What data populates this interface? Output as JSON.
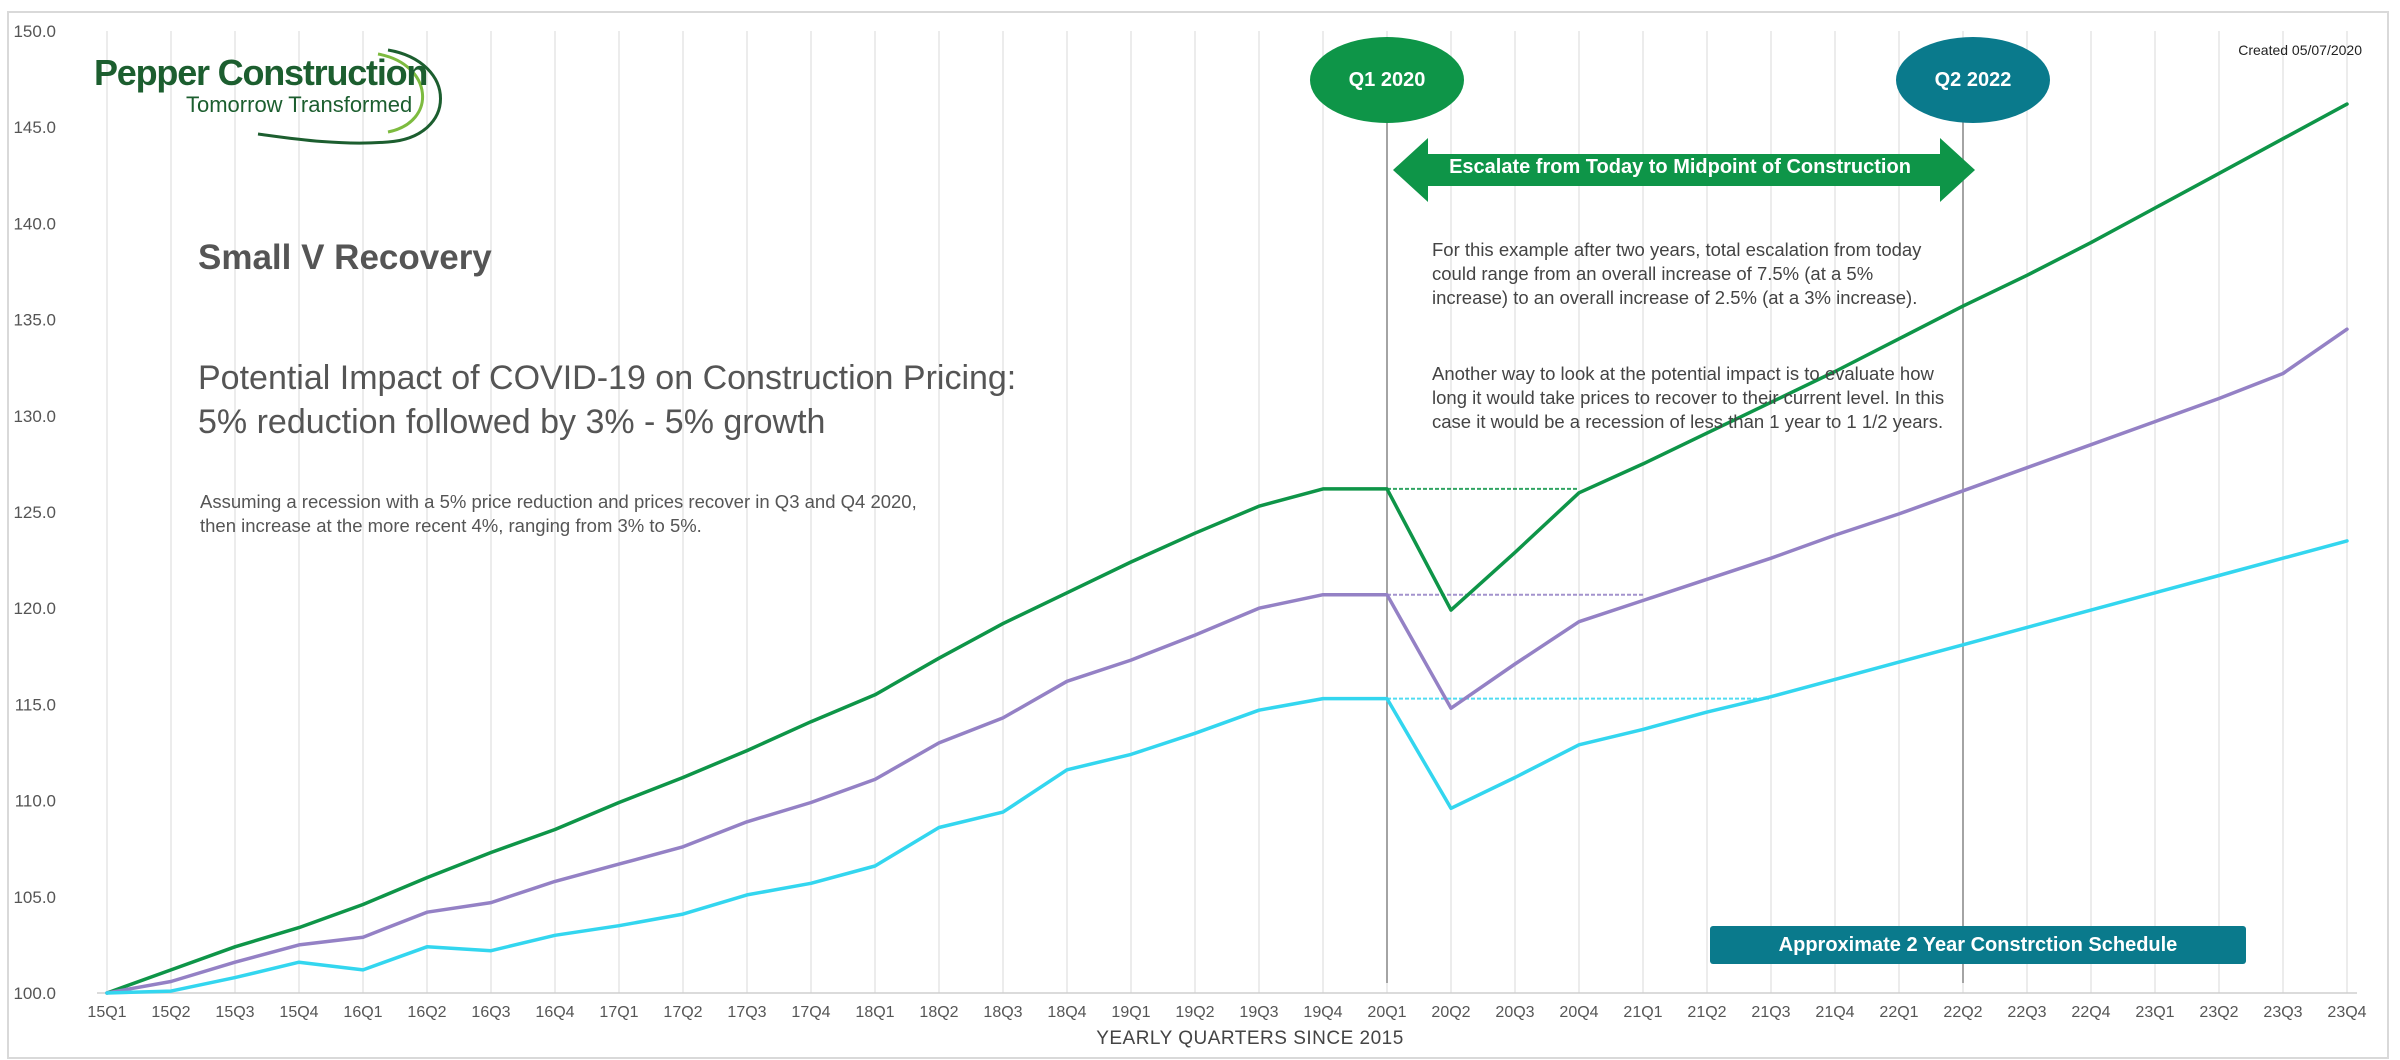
{
  "header": {
    "company": "Pepper Construction",
    "tagline": "Tomorrow Transformed",
    "created": "Created 05/07/2020"
  },
  "texts": {
    "title": "Small V Recovery",
    "headline_line1": "Potential Impact of COVID-19 on Construction Pricing:",
    "headline_line2": "5% reduction followed by 3% - 5% growth",
    "assumption_line1": "Assuming a recession with a 5% price reduction and prices recover in Q3 and Q4 2020,",
    "assumption_line2": "then increase at the more recent 4%, ranging from 3% to 5%.",
    "note1": "For this example after two years, total escalation from today could range from an overall increase of 7.5% (at a 5% increase) to an overall increase of 2.5% (at a 3% increase).",
    "note2": "Another way to look at the potential impact is to evaluate how long it would take prices to recover to their current level. In this case it would be a recession of less than 1 year to 1 1/2 years.",
    "badge_start": "Q1 2020",
    "badge_end": "Q2 2022",
    "escalate_arrow": "Escalate from Today to Midpoint of Construction",
    "schedule_box": "Approximate 2 Year Constrction Schedule"
  },
  "colors": {
    "green": "#0e9548",
    "purple": "#9481c5",
    "cyan": "#33d6ef",
    "teal": "#0a7a8c",
    "grid": "#e6e6e6",
    "axis_text": "#555555"
  },
  "chart_data": {
    "type": "line",
    "xlabel": "YEARLY QUARTERS SINCE 2015",
    "ylabel": "",
    "ylim": [
      100,
      150
    ],
    "yticks": [
      "100.0",
      "105.0",
      "110.0",
      "115.0",
      "120.0",
      "125.0",
      "130.0",
      "135.0",
      "140.0",
      "145.0",
      "150.0"
    ],
    "grid": "vertical",
    "categories": [
      "15Q1",
      "15Q2",
      "15Q3",
      "15Q4",
      "16Q1",
      "16Q2",
      "16Q3",
      "16Q4",
      "17Q1",
      "17Q2",
      "17Q3",
      "17Q4",
      "18Q1",
      "18Q2",
      "18Q3",
      "18Q4",
      "19Q1",
      "19Q2",
      "19Q3",
      "19Q4",
      "20Q1",
      "20Q2",
      "20Q3",
      "20Q4",
      "21Q1",
      "21Q2",
      "21Q3",
      "21Q4",
      "22Q1",
      "22Q2",
      "22Q3",
      "22Q4",
      "23Q1",
      "23Q2",
      "23Q3",
      "23Q4"
    ],
    "series": [
      {
        "color": "green",
        "values": [
          100.0,
          101.2,
          102.4,
          103.4,
          104.6,
          106.0,
          107.3,
          108.5,
          109.9,
          111.2,
          112.6,
          114.1,
          115.5,
          117.4,
          119.2,
          120.8,
          122.4,
          123.9,
          125.3,
          126.2,
          126.2,
          119.9,
          122.9,
          126.0,
          127.5,
          129.1,
          130.7,
          132.3,
          134.0,
          135.7,
          137.3,
          139.0,
          140.8,
          142.6,
          144.4,
          146.2
        ]
      },
      {
        "color": "purple",
        "values": [
          100.0,
          100.6,
          101.6,
          102.5,
          102.9,
          104.2,
          104.7,
          105.8,
          106.7,
          107.6,
          108.9,
          109.9,
          111.1,
          113.0,
          114.3,
          116.2,
          117.3,
          118.6,
          120.0,
          120.7,
          120.7,
          114.8,
          117.1,
          119.3,
          120.4,
          121.5,
          122.6,
          123.8,
          124.9,
          126.1,
          127.3,
          128.5,
          129.7,
          130.9,
          132.2,
          134.5
        ]
      },
      {
        "color": "cyan",
        "values": [
          100.0,
          100.1,
          100.8,
          101.6,
          101.2,
          102.4,
          102.2,
          103.0,
          103.5,
          104.1,
          105.1,
          105.7,
          106.6,
          108.6,
          109.4,
          111.6,
          112.4,
          113.5,
          114.7,
          115.3,
          115.3,
          109.6,
          111.2,
          112.9,
          113.7,
          114.6,
          115.4,
          116.3,
          117.2,
          118.1,
          119.0,
          119.9,
          120.8,
          121.7,
          122.6,
          123.5
        ]
      }
    ],
    "reference_levels": [
      {
        "color": "green",
        "value": 126.2,
        "from": "20Q1",
        "to": "20Q4"
      },
      {
        "color": "purple",
        "value": 120.7,
        "from": "20Q1",
        "to": "21Q1"
      },
      {
        "color": "cyan",
        "value": 115.3,
        "from": "20Q1",
        "to": "21Q3"
      }
    ],
    "markers": [
      "20Q1",
      "22Q2"
    ]
  }
}
